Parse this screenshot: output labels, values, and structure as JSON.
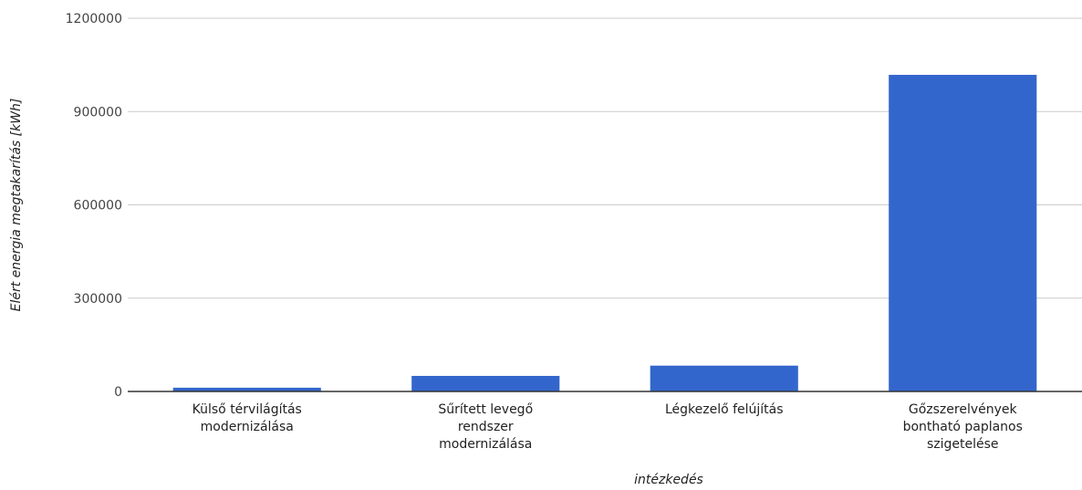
{
  "chart_data": {
    "type": "bar",
    "title": "",
    "xlabel": "intézkedés",
    "ylabel": "Elért energia megtakarítás [kWh]",
    "categories": [
      [
        "Külső térvilágítás",
        "modernizálása"
      ],
      [
        "Sűrített levegő",
        "rendszer",
        "modernizálása"
      ],
      [
        "Légkezelő felújítás"
      ],
      [
        "Gőzszerelvények",
        "bontható paplanos",
        "szigetelése"
      ]
    ],
    "values": [
      12000,
      50000,
      83000,
      1018000
    ],
    "ylim": [
      0,
      1200000
    ],
    "yticks": [
      0,
      300000,
      600000,
      900000,
      1200000
    ],
    "grid": true,
    "legend": "none",
    "bar_color": "#3366cc",
    "grid_color": "#cccccc",
    "axis_color": "#333333"
  }
}
